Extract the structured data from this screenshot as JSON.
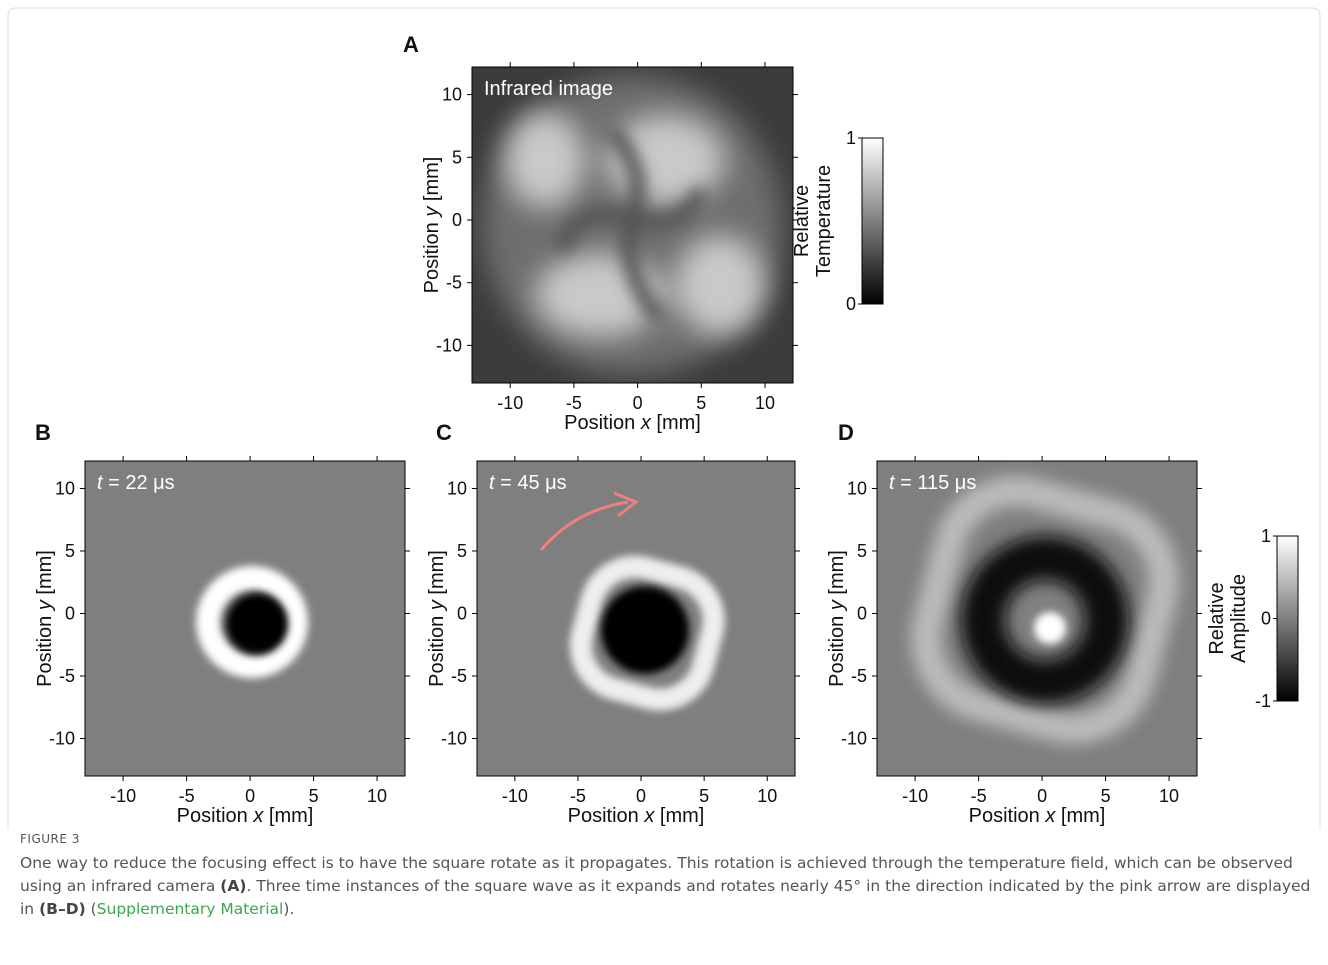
{
  "figure": {
    "panels": [
      {
        "letter": "A",
        "annotation": [
          "Infrared image"
        ],
        "x_label": [
          "Position ",
          "x",
          " [mm]"
        ],
        "y_label": [
          "Position ",
          "y",
          " [mm]"
        ],
        "xticks": [
          -10,
          -5,
          0,
          5,
          10
        ],
        "yticks": [
          10,
          5,
          0,
          -5,
          -10
        ],
        "xlim": [
          -13,
          12.2
        ],
        "ylim": [
          -13,
          12.2
        ]
      },
      {
        "letter": "B",
        "annotation": [
          "t",
          " = 22 μs"
        ],
        "x_label": [
          "Position ",
          "x",
          " [mm]"
        ],
        "y_label": [
          "Position ",
          "y",
          " [mm]"
        ],
        "xticks": [
          -10,
          -5,
          0,
          5,
          10
        ],
        "yticks": [
          10,
          5,
          0,
          -5,
          -10
        ],
        "xlim": [
          -13,
          12.2
        ],
        "ylim": [
          -13,
          12.2
        ]
      },
      {
        "letter": "C",
        "annotation": [
          "t",
          " = 45 μs"
        ],
        "x_label": [
          "Position ",
          "x",
          " [mm]"
        ],
        "y_label": [
          "Position ",
          "y",
          " [mm]"
        ],
        "xticks": [
          -10,
          -5,
          0,
          5,
          10
        ],
        "yticks": [
          10,
          5,
          0,
          -5,
          -10
        ],
        "xlim": [
          -13,
          12.2
        ],
        "ylim": [
          -13,
          12.2
        ]
      },
      {
        "letter": "D",
        "annotation": [
          "t",
          " = 115 μs"
        ],
        "x_label": [
          "Position ",
          "x",
          " [mm]"
        ],
        "y_label": [
          "Position ",
          "y",
          " [mm]"
        ],
        "xticks": [
          -10,
          -5,
          0,
          5,
          10
        ],
        "yticks": [
          10,
          5,
          0,
          -5,
          -10
        ],
        "xlim": [
          -13,
          12.2
        ],
        "ylim": [
          -13,
          12.2
        ]
      }
    ],
    "colorbars": [
      {
        "label": [
          "Relative",
          "Temperature"
        ],
        "ticks": [
          1,
          0
        ]
      },
      {
        "label": [
          "Relative",
          "Amplitude"
        ],
        "ticks": [
          1,
          0,
          -1
        ]
      }
    ],
    "caption": {
      "label": "FIGURE 3",
      "segments": [
        "One way to reduce the focusing effect is to have the square rotate as it propagates. This rotation is achieved through the temperature field, which can be observed using an infrared camera ",
        "(A)",
        ". Three time instances of the square wave as it expands and rotates nearly 45° in the direction indicated by the pink arrow are displayed in ",
        "(B–D)",
        " (",
        "Supplementary Material",
        ")."
      ]
    }
  }
}
